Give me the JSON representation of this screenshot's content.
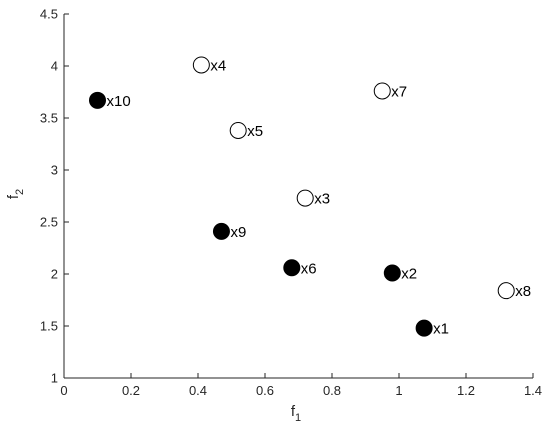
{
  "chart_data": {
    "type": "scatter",
    "title": "",
    "xlabel": {
      "base": "f",
      "sub": "1"
    },
    "ylabel": {
      "base": "f",
      "sub": "2"
    },
    "xlim": [
      0,
      1.4
    ],
    "ylim": [
      1,
      4.5
    ],
    "xticks": [
      0,
      0.2,
      0.4,
      0.6,
      0.8,
      1,
      1.2,
      1.4
    ],
    "xtick_labels": [
      "0",
      "0.2",
      "0.4",
      "0.6",
      "0.8",
      "1",
      "1.2",
      "1.4"
    ],
    "yticks": [
      1,
      1.5,
      2,
      2.5,
      3,
      3.5,
      4,
      4.5
    ],
    "ytick_labels": [
      "1",
      "1.5",
      "2",
      "2.5",
      "3",
      "3.5",
      "4",
      "4.5"
    ],
    "grid": false,
    "colors": {
      "axis": "#262626",
      "marker_edge": "#000000",
      "filled": "#000000",
      "open": "#ffffff"
    },
    "points": [
      {
        "label": "x1",
        "x": 1.075,
        "y": 1.48,
        "filled": true
      },
      {
        "label": "x2",
        "x": 0.98,
        "y": 2.01,
        "filled": true
      },
      {
        "label": "x3",
        "x": 0.72,
        "y": 2.73,
        "filled": false
      },
      {
        "label": "x4",
        "x": 0.41,
        "y": 4.01,
        "filled": false
      },
      {
        "label": "x5",
        "x": 0.52,
        "y": 3.38,
        "filled": false
      },
      {
        "label": "x6",
        "x": 0.68,
        "y": 2.06,
        "filled": true
      },
      {
        "label": "x7",
        "x": 0.95,
        "y": 3.76,
        "filled": false
      },
      {
        "label": "x8",
        "x": 1.32,
        "y": 1.84,
        "filled": false
      },
      {
        "label": "x9",
        "x": 0.47,
        "y": 2.41,
        "filled": true
      },
      {
        "label": "x10",
        "x": 0.1,
        "y": 3.67,
        "filled": true
      }
    ]
  }
}
